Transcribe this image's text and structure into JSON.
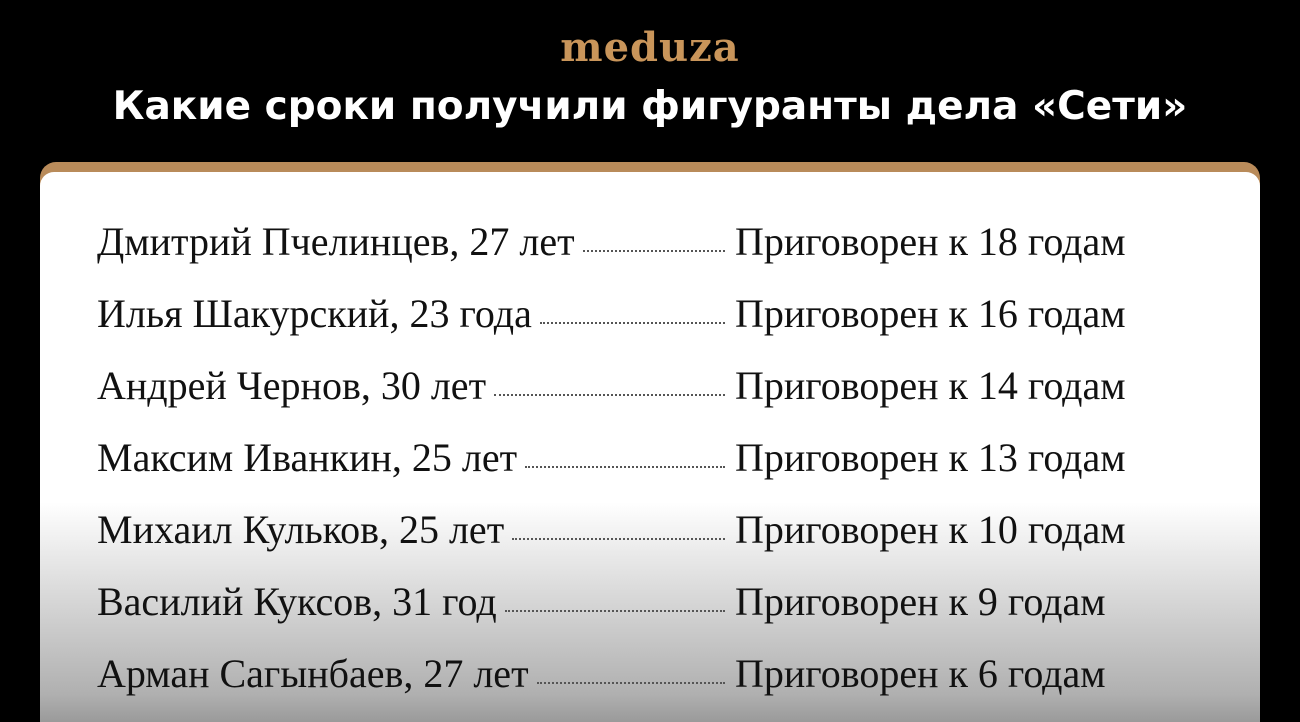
{
  "header": {
    "logo": "meduza",
    "title": "Какие сроки получили фигуранты дела «Сети»"
  },
  "rows": [
    {
      "name": "Дмитрий Пчелинцев, 27 лет",
      "sentence": "Приговорен к 18 годам"
    },
    {
      "name": "Илья Шакурский, 23 года",
      "sentence": "Приговорен к 16 годам"
    },
    {
      "name": "Андрей Чернов, 30 лет",
      "sentence": "Приговорен к 14 годам"
    },
    {
      "name": "Максим Иванкин, 25 лет",
      "sentence": "Приговорен к 13 годам"
    },
    {
      "name": "Михаил Кульков, 25 лет",
      "sentence": "Приговорен к 10 годам"
    },
    {
      "name": "Василий Куксов, 31 год",
      "sentence": "Приговорен к 9 годам"
    },
    {
      "name": "Арман Сагынбаев, 27 лет",
      "sentence": "Приговорен к 6 годам"
    }
  ],
  "colors": {
    "accent": "#b98b5a",
    "logo": "#c9955a",
    "background": "#000000"
  }
}
